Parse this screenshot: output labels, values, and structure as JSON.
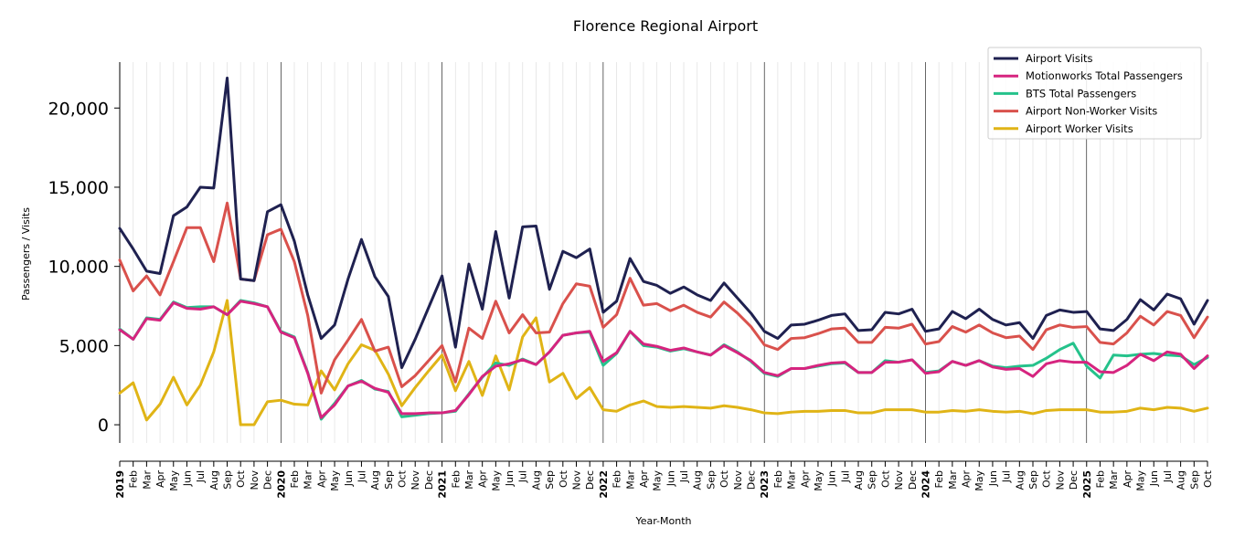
{
  "chart_data": {
    "type": "line",
    "title": "Florence Regional Airport",
    "xlabel": "Year-Month",
    "ylabel": "Passengers / Visits",
    "ylim": [
      -1150,
      22900
    ],
    "y_ticks": [
      0,
      5000,
      10000,
      15000,
      20000
    ],
    "y_tick_labels": [
      "0",
      "5,000",
      "10,000",
      "15,000",
      "20,000"
    ],
    "grid": "vertical",
    "legend_position": "top-right",
    "x": [
      "2019-01",
      "2019-02",
      "2019-03",
      "2019-04",
      "2019-05",
      "2019-06",
      "2019-07",
      "2019-08",
      "2019-09",
      "2019-10",
      "2019-11",
      "2019-12",
      "2020-01",
      "2020-02",
      "2020-03",
      "2020-04",
      "2020-05",
      "2020-06",
      "2020-07",
      "2020-08",
      "2020-09",
      "2020-10",
      "2020-11",
      "2020-12",
      "2021-01",
      "2021-02",
      "2021-03",
      "2021-04",
      "2021-05",
      "2021-06",
      "2021-07",
      "2021-08",
      "2021-09",
      "2021-10",
      "2021-11",
      "2021-12",
      "2022-01",
      "2022-02",
      "2022-03",
      "2022-04",
      "2022-05",
      "2022-06",
      "2022-07",
      "2022-08",
      "2022-09",
      "2022-10",
      "2022-11",
      "2022-12",
      "2023-01",
      "2023-02",
      "2023-03",
      "2023-04",
      "2023-05",
      "2023-06",
      "2023-07",
      "2023-08",
      "2023-09",
      "2023-10",
      "2023-11",
      "2023-12",
      "2024-01",
      "2024-02",
      "2024-03",
      "2024-04",
      "2024-05",
      "2024-06",
      "2024-07",
      "2024-08",
      "2024-09",
      "2024-10",
      "2024-11",
      "2024-12",
      "2025-01",
      "2025-02",
      "2025-03",
      "2025-04",
      "2025-05",
      "2025-06",
      "2025-07",
      "2025-08",
      "2025-09",
      "2025-10"
    ],
    "x_tick_labels": [
      "2019",
      "Feb",
      "Mar",
      "Apr",
      "May",
      "Jun",
      "Jul",
      "Aug",
      "Sep",
      "Oct",
      "Nov",
      "Dec",
      "2020",
      "Feb",
      "Mar",
      "Apr",
      "May",
      "Jun",
      "Jul",
      "Aug",
      "Sep",
      "Oct",
      "Nov",
      "Dec",
      "2021",
      "Feb",
      "Mar",
      "Apr",
      "May",
      "Jun",
      "Jul",
      "Aug",
      "Sep",
      "Oct",
      "Nov",
      "Dec",
      "2022",
      "Feb",
      "Mar",
      "Apr",
      "May",
      "Jun",
      "Jul",
      "Aug",
      "Sep",
      "Oct",
      "Nov",
      "Dec",
      "2023",
      "Feb",
      "Mar",
      "Apr",
      "May",
      "Jun",
      "Jul",
      "Aug",
      "Sep",
      "Oct",
      "Nov",
      "Dec",
      "2024",
      "Feb",
      "Mar",
      "Apr",
      "May",
      "Jun",
      "Jul",
      "Aug",
      "Sep",
      "Oct",
      "Nov",
      "Dec",
      "2025",
      "Feb",
      "Mar",
      "Apr",
      "May",
      "Jun",
      "Jul",
      "Aug",
      "Sep",
      "Oct"
    ],
    "series": [
      {
        "name": "Airport Visits",
        "color": "#1f2150",
        "values": [
          12400,
          11100,
          9700,
          9550,
          13200,
          13750,
          15000,
          14950,
          21900,
          9200,
          9100,
          13450,
          13900,
          11600,
          8200,
          5450,
          6300,
          9200,
          11700,
          9350,
          8100,
          3600,
          5400,
          7400,
          9400,
          4900,
          10150,
          7300,
          12200,
          8000,
          12500,
          12550,
          8550,
          10950,
          10550,
          11100,
          7100,
          7800,
          10500,
          9050,
          8800,
          8300,
          8700,
          8200,
          7850,
          8950,
          8000,
          7050,
          5900,
          5450,
          6300,
          6350,
          6600,
          6900,
          7000,
          5950,
          6000,
          7100,
          7000,
          7300,
          5900,
          6050,
          7150,
          6700,
          7300,
          6650,
          6300,
          6450,
          5450,
          6900,
          7250,
          7100,
          7150,
          6050,
          5950,
          6650,
          7900,
          7250,
          8250,
          7950,
          6350,
          7850
        ]
      },
      {
        "name": "Motionworks Total Passengers",
        "color": "#d6247f",
        "values": [
          6000,
          5400,
          6700,
          6600,
          7700,
          7350,
          7300,
          7450,
          6950,
          7800,
          7650,
          7450,
          5850,
          5500,
          3250,
          450,
          1250,
          2450,
          2750,
          2300,
          2050,
          700,
          700,
          750,
          750,
          900,
          1900,
          3050,
          3700,
          3850,
          4100,
          3800,
          4600,
          5650,
          5800,
          5900,
          4000,
          4550,
          5900,
          5100,
          4950,
          4700,
          4850,
          4600,
          4400,
          5000,
          4550,
          4050,
          3300,
          3100,
          3550,
          3550,
          3750,
          3900,
          3950,
          3300,
          3300,
          3950,
          3950,
          4100,
          3250,
          3350,
          4000,
          3750,
          4050,
          3650,
          3500,
          3550,
          3050,
          3850,
          4050,
          3950,
          3950,
          3350,
          3300,
          3750,
          4450,
          4050,
          4600,
          4450,
          3550,
          4350
        ]
      },
      {
        "name": "BTS Total Passengers",
        "color": "#25c28b",
        "values": [
          6050,
          5400,
          6750,
          6650,
          7750,
          7400,
          7450,
          7450,
          6950,
          7850,
          7700,
          7450,
          5900,
          5550,
          3300,
          350,
          1350,
          2450,
          2800,
          2250,
          2100,
          500,
          600,
          700,
          750,
          850,
          1950,
          3000,
          3900,
          3750,
          4150,
          3800,
          4600,
          5650,
          5800,
          5850,
          3750,
          4500,
          5900,
          5000,
          4900,
          4650,
          4800,
          4600,
          4400,
          5050,
          4600,
          4000,
          3250,
          3050,
          3550,
          3550,
          3700,
          3850,
          3900,
          3300,
          3300,
          4050,
          3950,
          4100,
          3300,
          3400,
          4000,
          3750,
          4050,
          3700,
          3600,
          3700,
          3750,
          4200,
          4750,
          5150,
          3700,
          2950,
          4400,
          4350,
          4450,
          4500,
          4400,
          4350,
          3800,
          4250
        ]
      },
      {
        "name": "Airport Non-Worker Visits",
        "color": "#d9514c",
        "values": [
          10400,
          8450,
          9400,
          8200,
          10300,
          12450,
          12450,
          10300,
          14000,
          9200,
          9100,
          12000,
          12350,
          10300,
          6900,
          2000,
          4100,
          5350,
          6650,
          4650,
          4900,
          2400,
          3100,
          4050,
          5000,
          2700,
          6100,
          5450,
          7800,
          5800,
          6950,
          5800,
          5850,
          7650,
          8900,
          8750,
          6150,
          6950,
          9250,
          7550,
          7650,
          7200,
          7550,
          7100,
          6800,
          7750,
          7050,
          6200,
          5050,
          4750,
          5450,
          5500,
          5750,
          6050,
          6100,
          5200,
          5200,
          6150,
          6100,
          6350,
          5100,
          5250,
          6200,
          5850,
          6300,
          5800,
          5500,
          5600,
          4750,
          6000,
          6300,
          6150,
          6200,
          5200,
          5100,
          5800,
          6850,
          6300,
          7150,
          6900,
          5500,
          6800
        ]
      },
      {
        "name": "Airport Worker Visits",
        "color": "#e0b416",
        "values": [
          2000,
          2650,
          300,
          1300,
          3000,
          1250,
          2500,
          4600,
          7850,
          0,
          0,
          1450,
          1550,
          1300,
          1250,
          3400,
          2200,
          3850,
          5050,
          4700,
          3200,
          1200,
          2350,
          3400,
          4400,
          2150,
          4000,
          1850,
          4350,
          2200,
          5550,
          6750,
          2700,
          3250,
          1650,
          2350,
          950,
          850,
          1250,
          1500,
          1150,
          1100,
          1150,
          1100,
          1050,
          1200,
          1100,
          950,
          750,
          700,
          800,
          850,
          850,
          900,
          900,
          750,
          750,
          950,
          950,
          950,
          800,
          800,
          900,
          850,
          950,
          850,
          800,
          850,
          700,
          900,
          950,
          950,
          950,
          800,
          800,
          850,
          1050,
          950,
          1100,
          1050,
          850,
          1050
        ]
      }
    ]
  }
}
